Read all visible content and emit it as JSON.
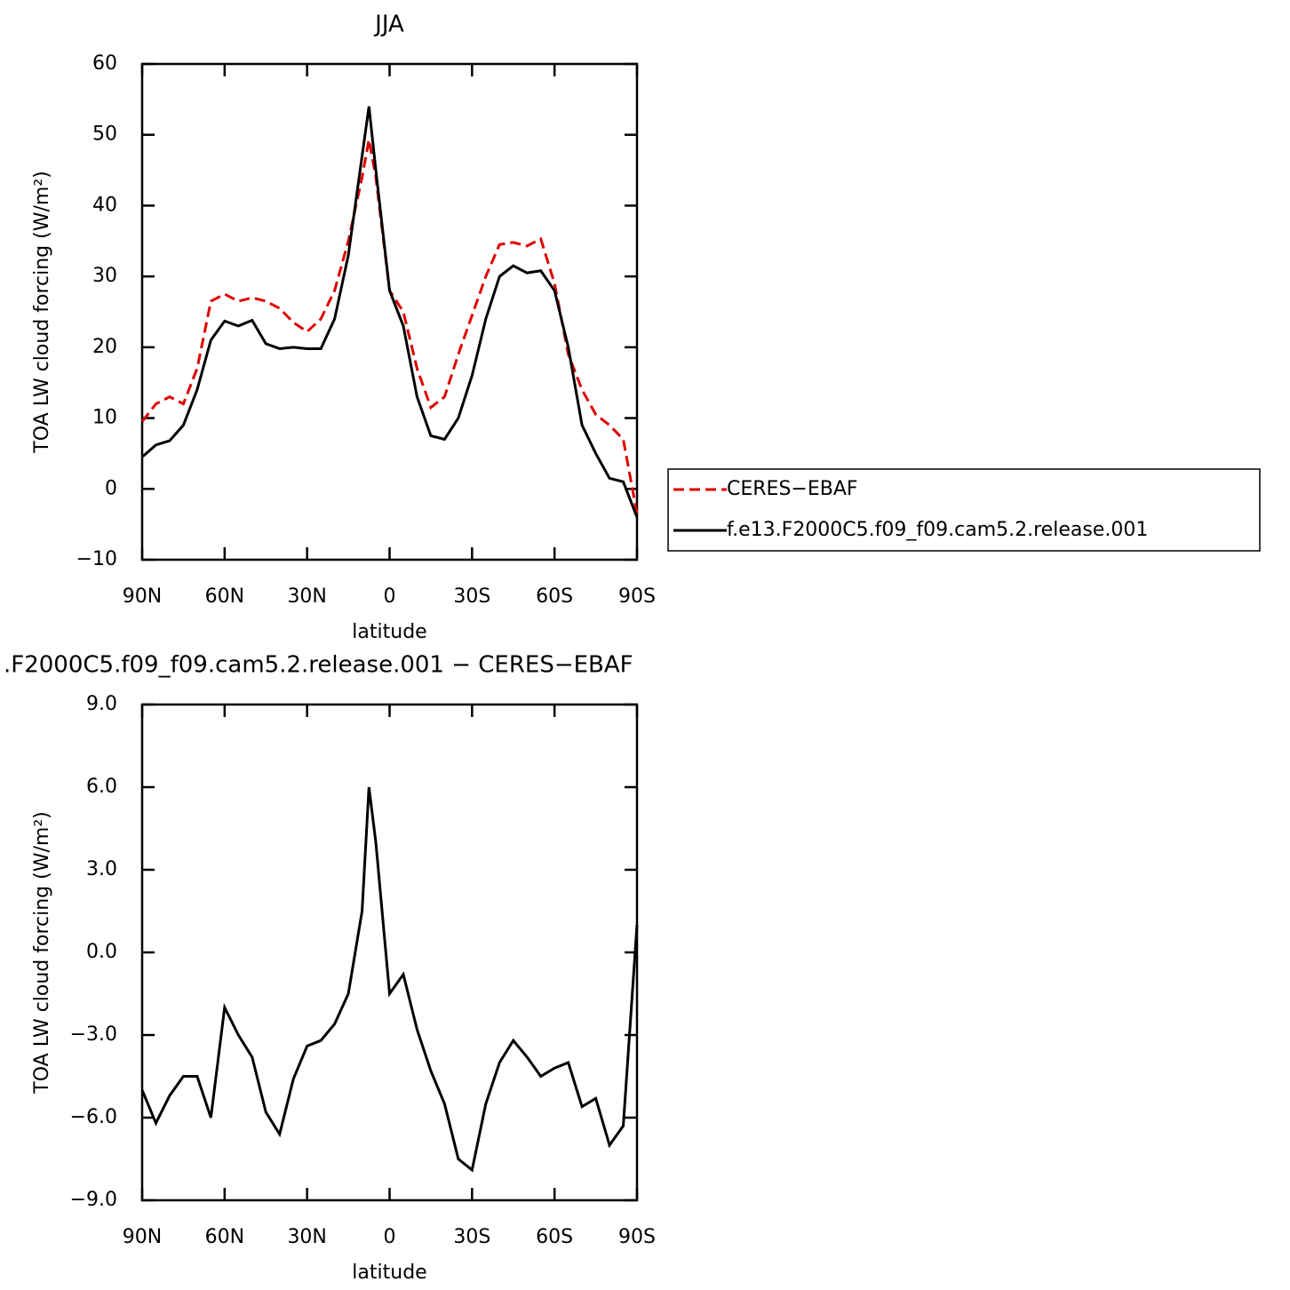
{
  "chart_data": [
    {
      "type": "line",
      "title": "JJA",
      "x_label": "latitude",
      "y_label": "TOA LW cloud forcing (W/m²)",
      "x": [
        90,
        85,
        80,
        75,
        70,
        65,
        60,
        55,
        50,
        45,
        40,
        35,
        30,
        25,
        20,
        15,
        10,
        7.5,
        5,
        0,
        -5,
        -10,
        -15,
        -20,
        -25,
        -30,
        -35,
        -40,
        -45,
        -50,
        -55,
        -60,
        -65,
        -70,
        -75,
        -80,
        -85,
        -90
      ],
      "series": [
        {
          "name": "CERES−EBAF",
          "color": "#e00000",
          "line_style": "dashed",
          "values": [
            9.5,
            12,
            13,
            12,
            17,
            26.5,
            27.5,
            26.5,
            27,
            26.5,
            25.5,
            23.5,
            22.2,
            24,
            28,
            35,
            44,
            49.3,
            44,
            28,
            25,
            17,
            11.5,
            13,
            19,
            24.5,
            30,
            34.5,
            34.8,
            34.3,
            35.3,
            29,
            19,
            14,
            10.5,
            9,
            7,
            -3.5
          ]
        },
        {
          "name": "f.e13.F2000C5.f09_f09.cam5.2.release.001",
          "color": "#000000",
          "line_style": "solid",
          "values": [
            4.5,
            6.2,
            6.8,
            9,
            14,
            21,
            23.7,
            23,
            23.8,
            20.5,
            19.8,
            20,
            19.8,
            19.8,
            24,
            33,
            47,
            54,
            45,
            28,
            23,
            13,
            7.5,
            7,
            10,
            16,
            24,
            30,
            31.5,
            30.5,
            30.8,
            28,
            20,
            9,
            5,
            1.5,
            1,
            -4
          ]
        }
      ],
      "xlim": [
        90,
        -90
      ],
      "xticks": [
        {
          "value": 90,
          "label": "90N"
        },
        {
          "value": 60,
          "label": "60N"
        },
        {
          "value": 30,
          "label": "30N"
        },
        0,
        {
          "value": -30,
          "label": "30S"
        },
        {
          "value": -60,
          "label": "60S"
        },
        {
          "value": -90,
          "label": "90S"
        }
      ],
      "ylim": [
        -10,
        60
      ],
      "yticks": [
        {
          "value": -10,
          "label": "−10"
        },
        0,
        10,
        20,
        30,
        40,
        50,
        60
      ],
      "legend": "right"
    },
    {
      "type": "line",
      "title": ".F2000C5.f09_f09.cam5.2.release.001 − CERES−EBAF",
      "x_label": "latitude",
      "y_label": "TOA LW cloud forcing (W/m²)",
      "x": [
        90,
        85,
        80,
        75,
        70,
        65,
        60,
        55,
        50,
        45,
        40,
        35,
        30,
        25,
        20,
        15,
        10,
        7.5,
        5,
        0,
        -5,
        -10,
        -15,
        -20,
        -25,
        -30,
        -35,
        -40,
        -45,
        -50,
        -55,
        -60,
        -65,
        -70,
        -75,
        -80,
        -85,
        -90
      ],
      "color": "#000000",
      "values": [
        -5.0,
        -6.2,
        -5.2,
        -4.5,
        -4.5,
        -6.0,
        -2.0,
        -3.0,
        -3.8,
        -5.8,
        -6.6,
        -4.6,
        -3.4,
        -3.2,
        -2.6,
        -1.5,
        1.5,
        6.0,
        4.0,
        -1.5,
        -0.8,
        -2.8,
        -4.3,
        -5.5,
        -7.5,
        -7.9,
        -5.5,
        -4.0,
        -3.2,
        -3.8,
        -4.5,
        -4.2,
        -4.0,
        -5.6,
        -5.3,
        -7.0,
        -6.3,
        1.0
      ],
      "xlim": [
        90,
        -90
      ],
      "xticks": [
        {
          "value": 90,
          "label": "90N"
        },
        {
          "value": 60,
          "label": "60N"
        },
        {
          "value": 30,
          "label": "30N"
        },
        0,
        {
          "value": -30,
          "label": "30S"
        },
        {
          "value": -60,
          "label": "60S"
        },
        {
          "value": -90,
          "label": "90S"
        }
      ],
      "ylim": [
        -9,
        9
      ],
      "yticks": [
        {
          "value": -9,
          "label": "−9.0"
        },
        {
          "value": -6,
          "label": "−6.0"
        },
        {
          "value": -3,
          "label": "−3.0"
        },
        {
          "value": 0,
          "label": "0.0"
        },
        {
          "value": 3,
          "label": "3.0"
        },
        {
          "value": 6,
          "label": "6.0"
        },
        {
          "value": 9,
          "label": "9.0"
        }
      ]
    }
  ]
}
